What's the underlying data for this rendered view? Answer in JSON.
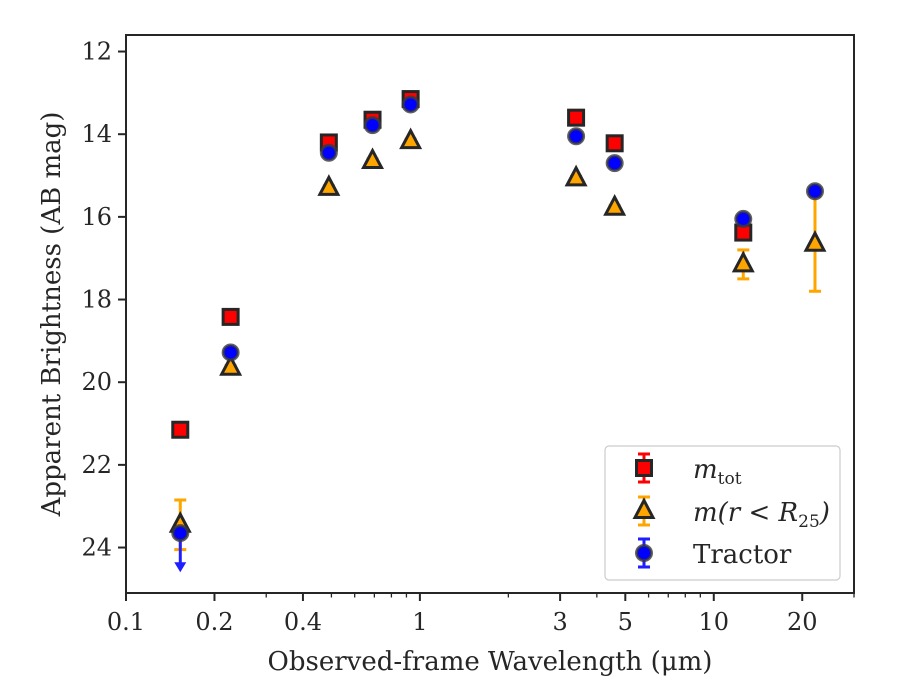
{
  "chart_data": {
    "type": "scatter",
    "xlabel": "Observed-frame Wavelength (μm)",
    "ylabel": "Apparent Brightness (AB mag)",
    "x_scale": "log",
    "xlim": [
      0.1,
      30
    ],
    "ylim": [
      25.1,
      11.6
    ],
    "y_inverted": true,
    "x_ticks": [
      {
        "value": 0.1,
        "label": "0.1"
      },
      {
        "value": 0.2,
        "label": "0.2"
      },
      {
        "value": 0.4,
        "label": "0.4"
      },
      {
        "value": 1,
        "label": "1"
      },
      {
        "value": 3,
        "label": "3"
      },
      {
        "value": 5,
        "label": "5"
      },
      {
        "value": 10,
        "label": "10"
      },
      {
        "value": 20,
        "label": "20"
      }
    ],
    "y_ticks": [
      {
        "value": 12,
        "label": "12"
      },
      {
        "value": 14,
        "label": "14"
      },
      {
        "value": 16,
        "label": "16"
      },
      {
        "value": 18,
        "label": "18"
      },
      {
        "value": 20,
        "label": "20"
      },
      {
        "value": 22,
        "label": "22"
      },
      {
        "value": 24,
        "label": "24"
      }
    ],
    "grid": false,
    "legend_position": "lower right",
    "series": [
      {
        "key": "mtot",
        "legend_main": "m",
        "legend_sub": "tot",
        "marker": "square",
        "color": "#ff0000",
        "error_color": "#ff0000",
        "points": [
          {
            "x": 0.153,
            "y": 21.15,
            "err": 0.05
          },
          {
            "x": 0.227,
            "y": 18.42,
            "err": 0.05
          },
          {
            "x": 0.49,
            "y": 14.2,
            "err": 0.06
          },
          {
            "x": 0.69,
            "y": 13.65,
            "err": 0.1
          },
          {
            "x": 0.93,
            "y": 13.15,
            "err": 0.15
          },
          {
            "x": 3.4,
            "y": 13.6,
            "err": 0.08
          },
          {
            "x": 4.6,
            "y": 14.22,
            "err": 0.08
          },
          {
            "x": 12.6,
            "y": 16.38,
            "err": 0.1
          }
        ]
      },
      {
        "key": "mr25",
        "legend_main": "m(r < R",
        "legend_sub": "25",
        "legend_tail": ")",
        "marker": "triangle",
        "color": "#ffa500",
        "error_color": "#ffa500",
        "points": [
          {
            "x": 0.153,
            "y": 23.45,
            "err": 0.6
          },
          {
            "x": 0.227,
            "y": 19.65,
            "err": 0.05
          },
          {
            "x": 0.49,
            "y": 15.3,
            "err": 0.05
          },
          {
            "x": 0.69,
            "y": 14.65,
            "err": 0.05
          },
          {
            "x": 0.93,
            "y": 14.17,
            "err": 0.05
          },
          {
            "x": 3.4,
            "y": 15.07,
            "err": 0.05
          },
          {
            "x": 4.6,
            "y": 15.78,
            "err": 0.05
          },
          {
            "x": 12.6,
            "y": 17.15,
            "err": 0.35
          },
          {
            "x": 22.1,
            "y": 16.65,
            "err": 1.15
          }
        ]
      },
      {
        "key": "tractor",
        "legend_main": "Tractor",
        "marker": "circle",
        "color": "#0000ff",
        "error_color": "#1e1eff",
        "points": [
          {
            "x": 0.153,
            "y": 23.65,
            "err": 0.05,
            "upper_limit": true
          },
          {
            "x": 0.227,
            "y": 19.28,
            "err": 0.05
          },
          {
            "x": 0.49,
            "y": 14.45,
            "err": 0.05
          },
          {
            "x": 0.69,
            "y": 13.78,
            "err": 0.05
          },
          {
            "x": 0.93,
            "y": 13.28,
            "err": 0.05
          },
          {
            "x": 3.4,
            "y": 14.05,
            "err": 0.05
          },
          {
            "x": 4.6,
            "y": 14.7,
            "err": 0.05
          },
          {
            "x": 12.6,
            "y": 16.05,
            "err": 0.05
          },
          {
            "x": 22.1,
            "y": 15.38,
            "err": 0.05
          }
        ]
      }
    ]
  }
}
